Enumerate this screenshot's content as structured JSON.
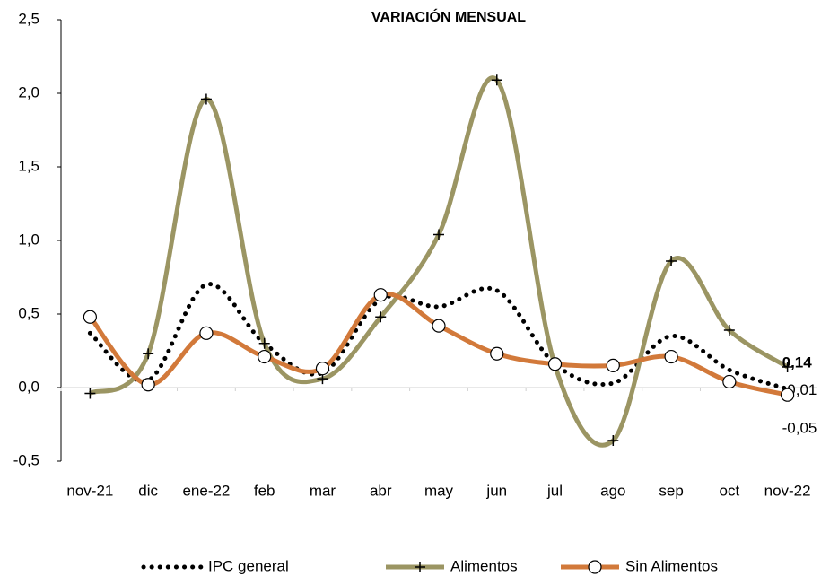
{
  "chart_data": {
    "type": "line",
    "title": "VARIACIÓN MENSUAL",
    "categories": [
      "nov-21",
      "dic",
      "ene-22",
      "feb",
      "mar",
      "abr",
      "may",
      "jun",
      "jul",
      "ago",
      "sep",
      "oct",
      "nov-22"
    ],
    "series": [
      {
        "name": "IPC general",
        "color": "#000000",
        "style": "dotted",
        "marker": "none",
        "values": [
          0.37,
          0.05,
          0.7,
          0.3,
          0.1,
          0.6,
          0.55,
          0.66,
          0.16,
          0.03,
          0.35,
          0.12,
          -0.01
        ],
        "value_labels": [
          null,
          null,
          null,
          null,
          null,
          null,
          null,
          null,
          null,
          null,
          null,
          null,
          "-0,01"
        ],
        "label_color": "#000000"
      },
      {
        "name": "Alimentos",
        "color": "#9b9563",
        "style": "solid",
        "marker": "plus",
        "values": [
          -0.04,
          0.23,
          1.96,
          0.3,
          0.06,
          0.48,
          1.04,
          2.09,
          0.15,
          -0.36,
          0.86,
          0.39,
          0.14
        ],
        "value_labels": [
          null,
          null,
          null,
          null,
          null,
          null,
          null,
          null,
          null,
          null,
          null,
          null,
          "0,14"
        ],
        "label_color": "#7f7a14"
      },
      {
        "name": "Sin Alimentos",
        "color": "#d2793a",
        "style": "solid",
        "marker": "circle",
        "values": [
          0.48,
          0.02,
          0.37,
          0.21,
          0.13,
          0.63,
          0.42,
          0.23,
          0.16,
          0.15,
          0.21,
          0.04,
          -0.05
        ],
        "value_labels": [
          null,
          null,
          null,
          null,
          null,
          null,
          null,
          null,
          null,
          null,
          null,
          null,
          "-0,05"
        ],
        "label_color": "#e87722"
      }
    ],
    "ylim": [
      -0.5,
      2.5
    ],
    "yticks": [
      {
        "value": -0.5,
        "label": "-0,5"
      },
      {
        "value": 0,
        "label": "0,0"
      },
      {
        "value": 0.5,
        "label": "0,5"
      },
      {
        "value": 1,
        "label": "1,0"
      },
      {
        "value": 1.5,
        "label": "1,5"
      },
      {
        "value": 2,
        "label": "2,0"
      },
      {
        "value": 2.5,
        "label": "2,5"
      }
    ],
    "grid": false,
    "legend": "bottom"
  }
}
